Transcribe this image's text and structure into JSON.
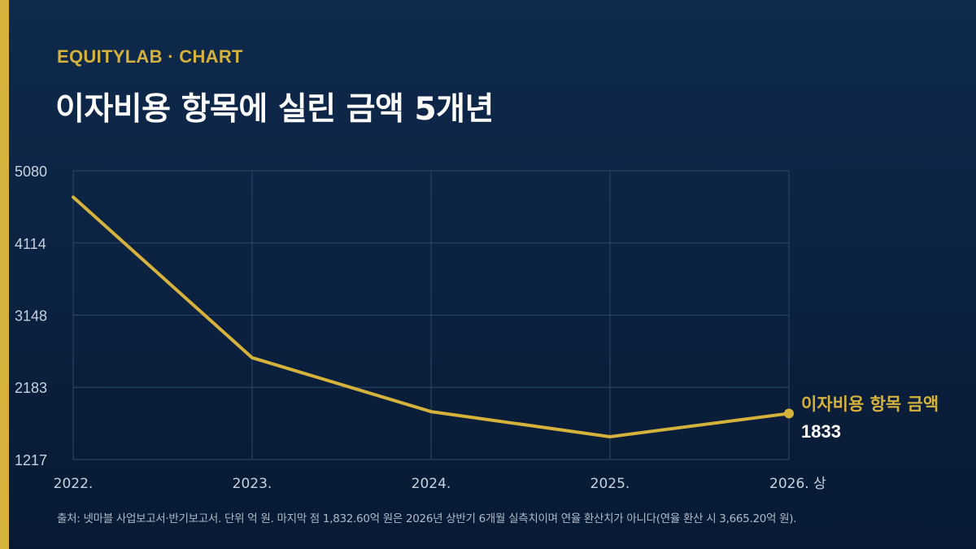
{
  "header": {
    "kicker": "EQUITYLAB · CHART",
    "title": "이자비용 항목에 실린 금액 5개년"
  },
  "footer": {
    "source": "출처: 넷마블 사업보고서·반기보고서. 단위 억 원. 마지막 점 1,832.60억 원은 2026년 상반기 6개월 실측치이며 연율 환산치가 아니다(연율 환산 시 3,665.20억 원)."
  },
  "colors": {
    "accent": "#d4b23c",
    "line": "#d4b23c",
    "grid": "#3a5578",
    "tick_text": "#c8d1de",
    "end_value": "#ffffff"
  },
  "chart_data": {
    "type": "line",
    "categories": [
      "2022.",
      "2023.",
      "2024.",
      "2025.",
      "2026. 상"
    ],
    "series": [
      {
        "name": "이자비용 항목 금액",
        "values": [
          4728,
          2579,
          1858,
          1522,
          1833
        ]
      }
    ],
    "end_label": {
      "name": "이자비용 항목 금액",
      "value": "1833"
    },
    "yticks": [
      1217,
      2183,
      3148,
      4114,
      5080
    ],
    "ylim": [
      1217,
      5080
    ],
    "grid": true,
    "xlabel": "",
    "ylabel": ""
  }
}
